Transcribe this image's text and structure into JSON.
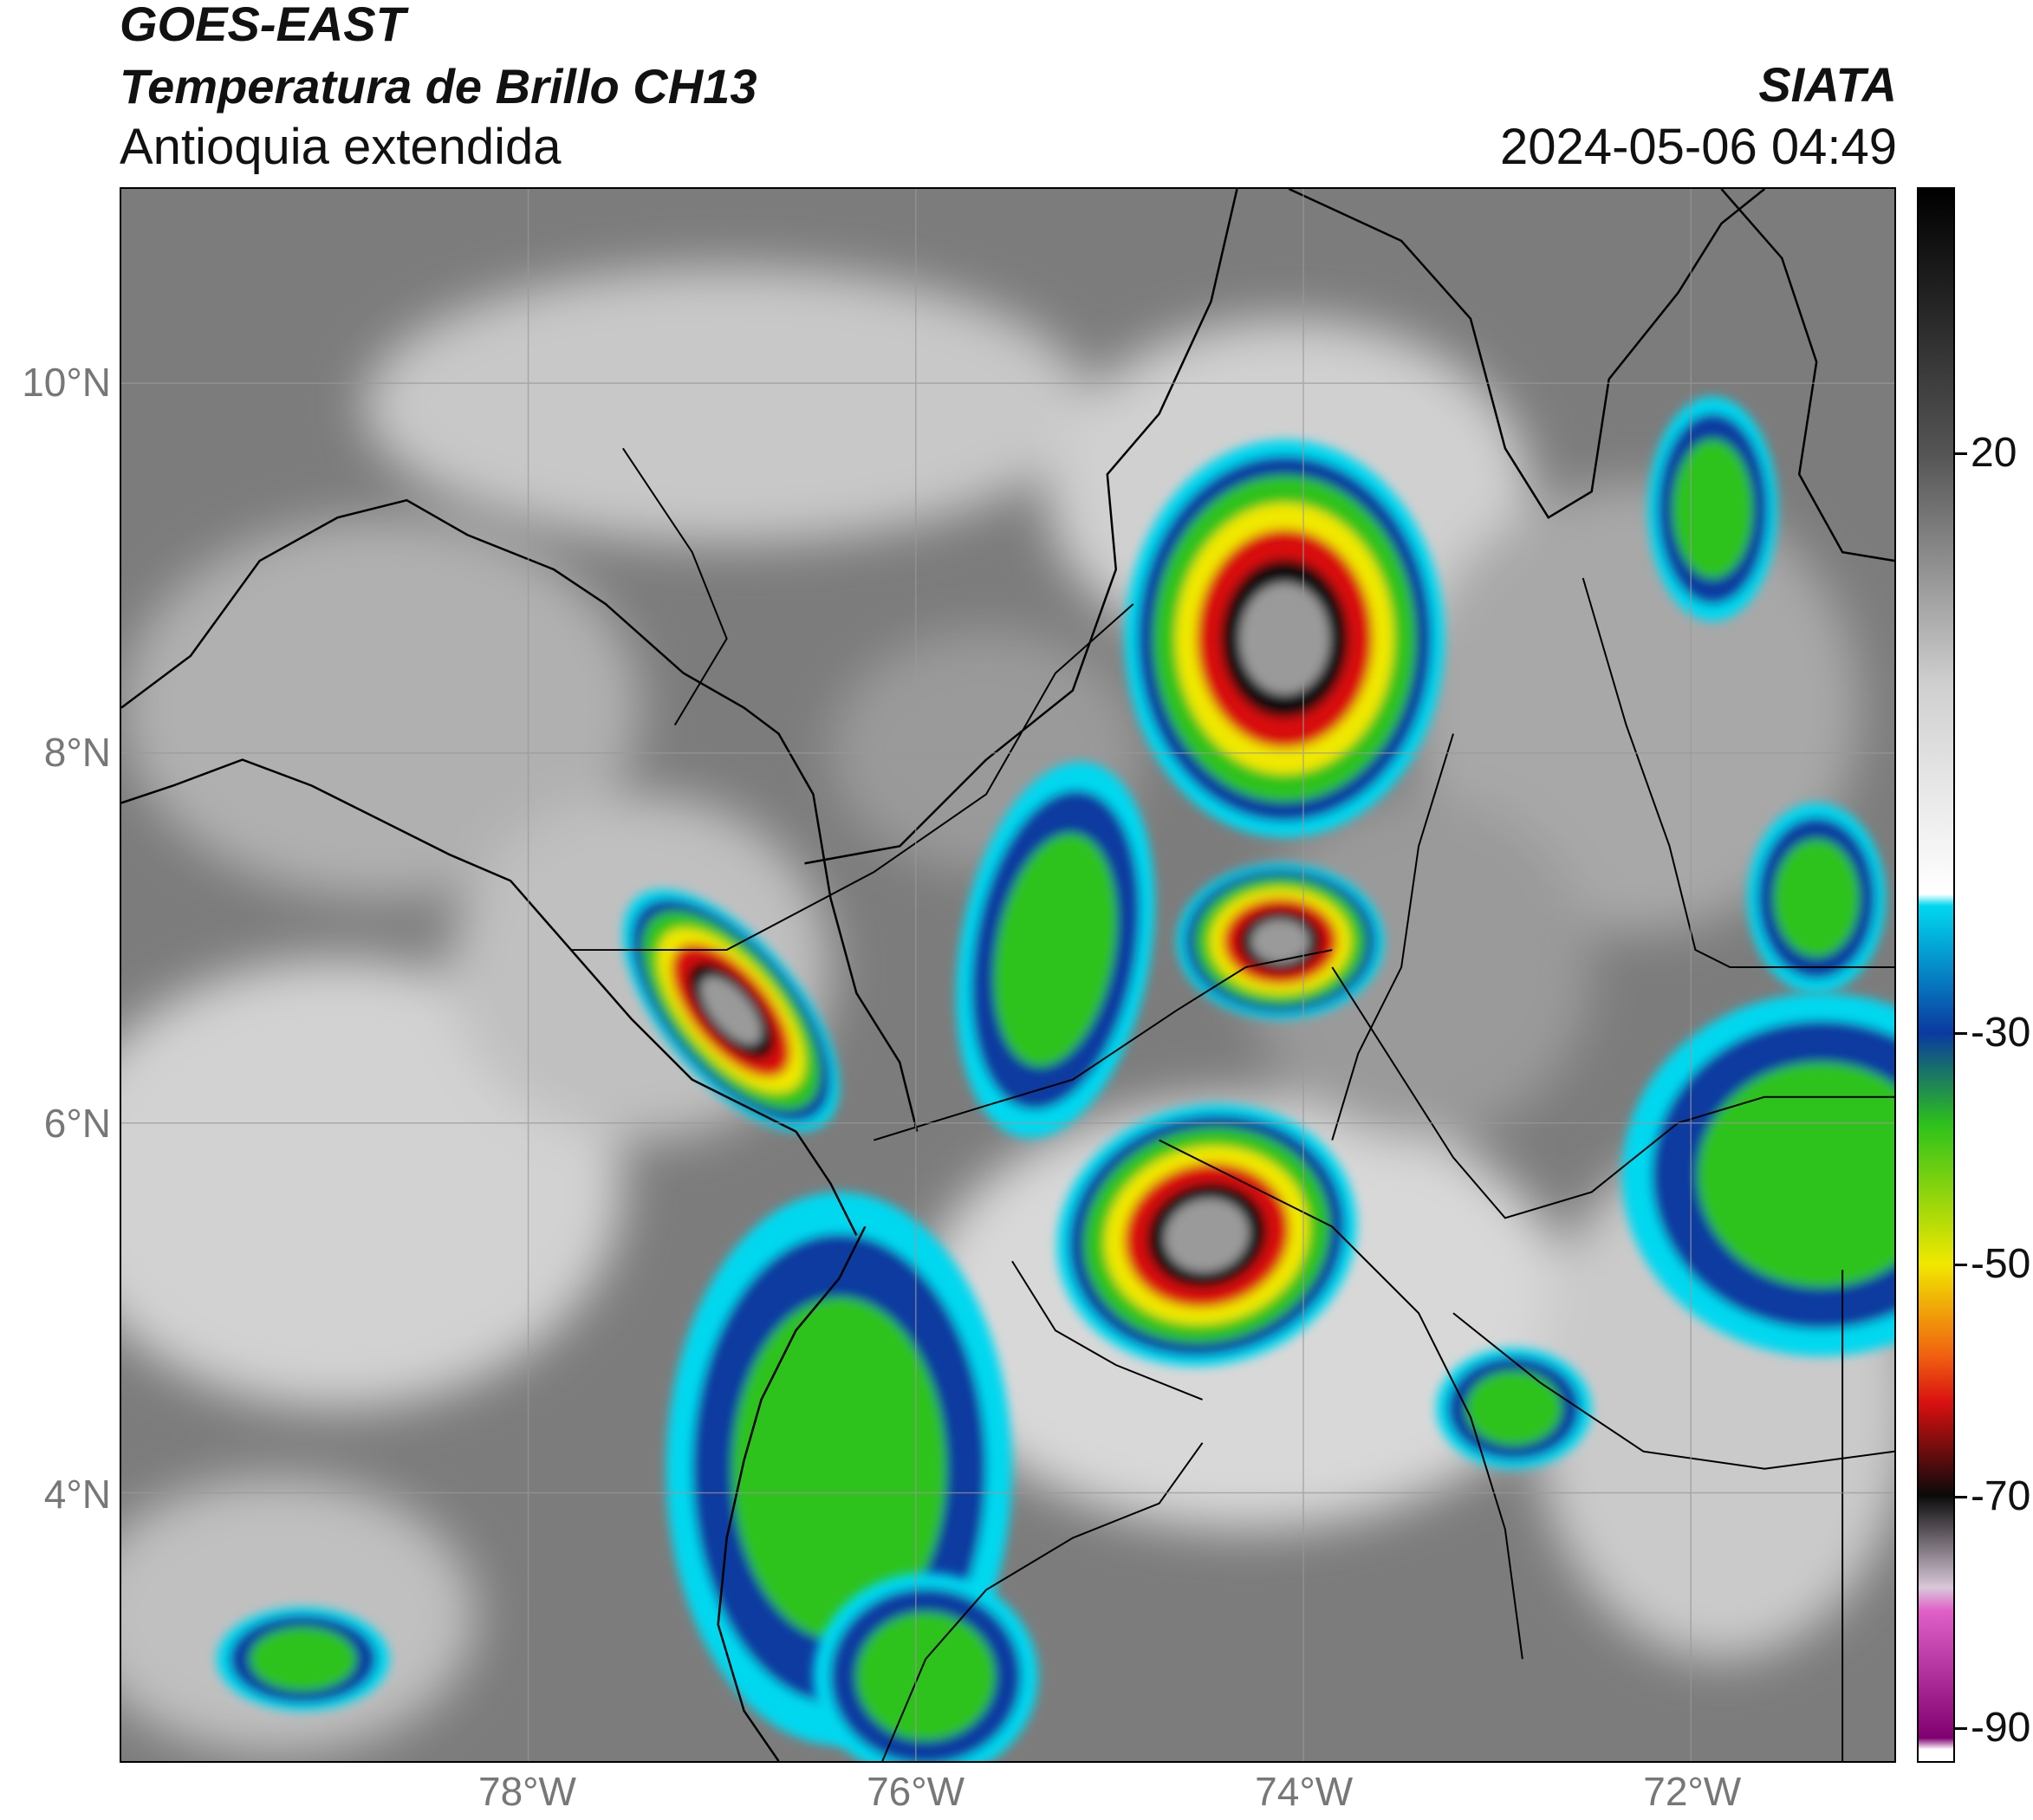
{
  "header": {
    "satellite": "GOES-EAST",
    "product": "Temperatura de Brillo CH13",
    "region": "Antioquia extendida",
    "agency": "SIATA",
    "timestamp": "2024-05-06 04:49"
  },
  "map": {
    "latitude_labels": [
      "10°N",
      "8°N",
      "6°N",
      "4°N"
    ],
    "longitude_labels": [
      "78°W",
      "76°W",
      "74°W",
      "72°W"
    ],
    "lat_range": [
      2.55,
      11.05
    ],
    "lon_range": [
      -80.1,
      -70.95
    ]
  },
  "colorbar": {
    "tick_labels": [
      "20",
      "-30",
      "-50",
      "-70",
      "-90"
    ],
    "tick_values": [
      20,
      -30,
      -50,
      -70,
      -90
    ],
    "range": [
      -93,
      43
    ],
    "colors": {
      "warm_gray": "#3a3a3a",
      "cold_gray": "#f0f0f0",
      "cyan": "#00d8f0",
      "blue": "#0a3aa0",
      "green": "#2ec21a",
      "yellow": "#f0e800",
      "red": "#d81010",
      "black": "#0a0a0a",
      "pink": "#e060c8",
      "purple": "#800070"
    }
  }
}
